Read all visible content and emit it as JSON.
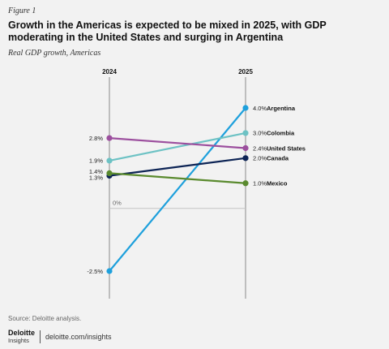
{
  "figure_label": "Figure 1",
  "title": "Growth in the Americas is expected to be mixed in 2025, with GDP moderating in the United States and surging in Argentina",
  "subtitle": "Real GDP growth, Americas",
  "source": "Source: Deloitte analysis.",
  "brand": {
    "name": "Deloitte",
    "sub": "Insights",
    "url": "deloitte.com/insights"
  },
  "chart_data": {
    "type": "line",
    "x": [
      "2024",
      "2025"
    ],
    "ylim": [
      -2.5,
      4.0
    ],
    "zero_label": "0%",
    "series": [
      {
        "name": "Argentina",
        "values": [
          -2.5,
          4.0
        ],
        "labels": [
          "-2.5%",
          "4.0%"
        ],
        "color": "#1ea0dc"
      },
      {
        "name": "Colombia",
        "values": [
          1.9,
          3.0
        ],
        "labels": [
          "1.9%",
          "3.0%"
        ],
        "color": "#6dc2c4"
      },
      {
        "name": "United States",
        "values": [
          2.8,
          2.4
        ],
        "labels": [
          "2.8%",
          "2.4%"
        ],
        "color": "#9c4f9e"
      },
      {
        "name": "Canada",
        "values": [
          1.3,
          2.0
        ],
        "labels": [
          "1.3%",
          "2.0%"
        ],
        "color": "#0d2455"
      },
      {
        "name": "Mexico",
        "values": [
          1.4,
          1.0
        ],
        "labels": [
          "1.4%",
          "1.0%"
        ],
        "color": "#5a8a2e"
      }
    ]
  }
}
